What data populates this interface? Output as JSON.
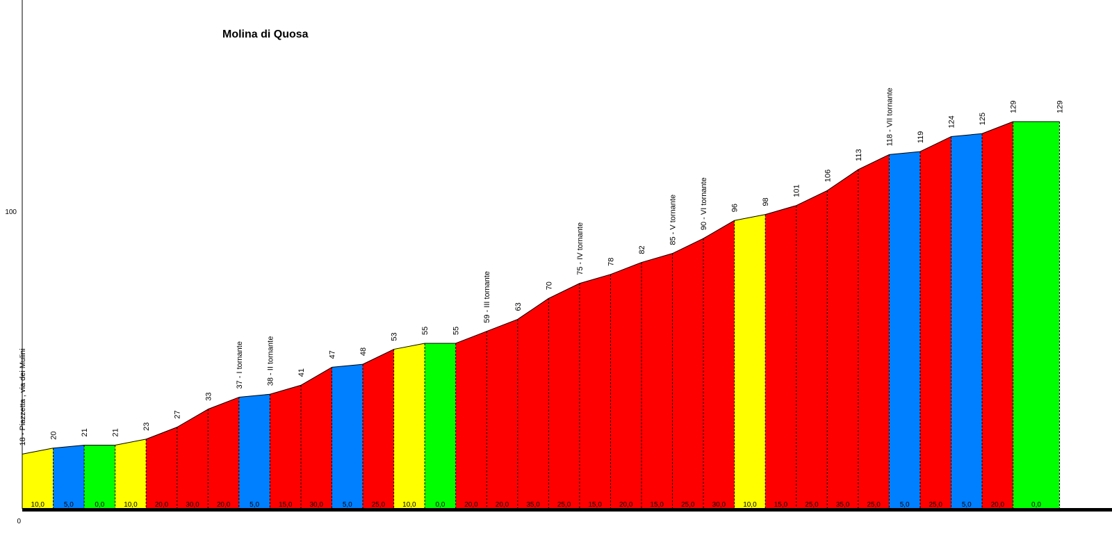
{
  "chart_data": {
    "type": "area",
    "title": "Molina di Quosa",
    "xlabel": "",
    "ylabel": "",
    "y_ticks": [
      "0",
      "100"
    ],
    "ylim": [
      0,
      129
    ],
    "grid": false,
    "legend": "none",
    "grade_colors": {
      "0,0": "#00ff00",
      "5,0": "#0080ff",
      "10,0": "#ffff00",
      "other": "#ff0000"
    },
    "points": [
      {
        "x": 0,
        "y": 18,
        "label": "18 - Piazzetta , via dei Mulini"
      },
      {
        "x": 1,
        "y": 20,
        "label": "20"
      },
      {
        "x": 2,
        "y": 21,
        "label": "21"
      },
      {
        "x": 3,
        "y": 21,
        "label": "21"
      },
      {
        "x": 4,
        "y": 23,
        "label": "23"
      },
      {
        "x": 5,
        "y": 27,
        "label": "27"
      },
      {
        "x": 6,
        "y": 33,
        "label": "33"
      },
      {
        "x": 7,
        "y": 37,
        "label": "37 - I tornante"
      },
      {
        "x": 8,
        "y": 38,
        "label": "38 - II tornante"
      },
      {
        "x": 9,
        "y": 41,
        "label": "41"
      },
      {
        "x": 10,
        "y": 47,
        "label": "47"
      },
      {
        "x": 11,
        "y": 48,
        "label": "48"
      },
      {
        "x": 12,
        "y": 53,
        "label": "53"
      },
      {
        "x": 13,
        "y": 55,
        "label": "55"
      },
      {
        "x": 14,
        "y": 55,
        "label": "55"
      },
      {
        "x": 15,
        "y": 59,
        "label": "59 - III tornante"
      },
      {
        "x": 16,
        "y": 63,
        "label": "63"
      },
      {
        "x": 17,
        "y": 70,
        "label": "70"
      },
      {
        "x": 18,
        "y": 75,
        "label": "75 - IV tornante"
      },
      {
        "x": 19,
        "y": 78,
        "label": "78"
      },
      {
        "x": 20,
        "y": 82,
        "label": "82"
      },
      {
        "x": 21,
        "y": 85,
        "label": "85 - V tornante"
      },
      {
        "x": 22,
        "y": 90,
        "label": "90 - VI tornante"
      },
      {
        "x": 23,
        "y": 96,
        "label": "96"
      },
      {
        "x": 24,
        "y": 98,
        "label": "98"
      },
      {
        "x": 25,
        "y": 101,
        "label": "101"
      },
      {
        "x": 26,
        "y": 106,
        "label": "106"
      },
      {
        "x": 27,
        "y": 113,
        "label": "113"
      },
      {
        "x": 28,
        "y": 118,
        "label": "118 - VII tornante"
      },
      {
        "x": 29,
        "y": 119,
        "label": "119"
      },
      {
        "x": 30,
        "y": 124,
        "label": "124"
      },
      {
        "x": 31,
        "y": 125,
        "label": "125"
      },
      {
        "x": 32,
        "y": 129,
        "label": "129"
      },
      {
        "x": 33.5,
        "y": 129,
        "label": "129"
      }
    ],
    "segment_grades": [
      "10,0",
      "5,0",
      "0,0",
      "10,0",
      "20,0",
      "30,0",
      "20,0",
      "5,0",
      "15,0",
      "30,0",
      "5,0",
      "25,0",
      "10,0",
      "0,0",
      "20,0",
      "20,0",
      "35,0",
      "25,0",
      "15,0",
      "20,0",
      "15,0",
      "25,0",
      "30,0",
      "10,0",
      "15,0",
      "25,0",
      "35,0",
      "25,0",
      "5,0",
      "25,0",
      "5,0",
      "20,0",
      "0,0"
    ]
  }
}
